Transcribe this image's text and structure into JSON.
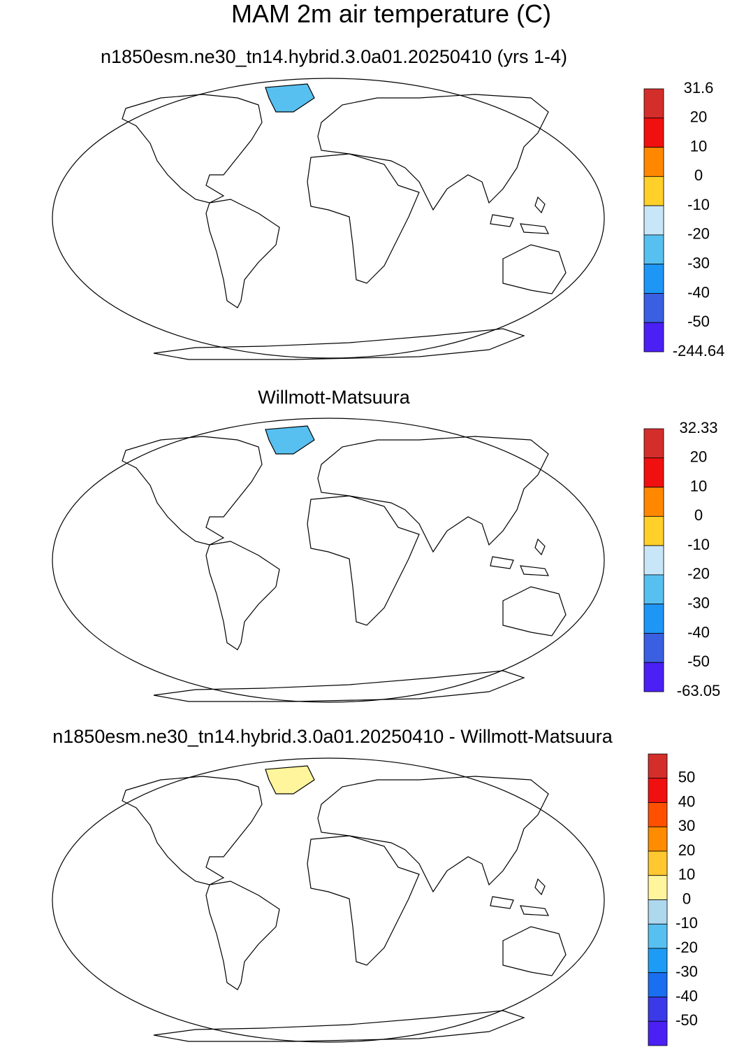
{
  "title": "MAM 2m air temperature (C)",
  "panels": [
    {
      "subtitle": "n1850esm.ne30_tn14.hybrid.3.0a01.20250410 (yrs 1-4)",
      "colorbar": {
        "colors": [
          "#d42e2b",
          "#f01010",
          "#ff8800",
          "#ffd02a",
          "#c8e6f7",
          "#58c0f0",
          "#1e96f5",
          "#3a5fe0",
          "#4a20f5"
        ],
        "labels": [
          31.6,
          20,
          10,
          0,
          -10,
          -20,
          -30,
          -40,
          -50,
          -244.64
        ]
      }
    },
    {
      "subtitle": "Willmott-Matsuura",
      "colorbar": {
        "colors": [
          "#d42e2b",
          "#f01010",
          "#ff8800",
          "#ffd02a",
          "#c8e6f7",
          "#58c0f0",
          "#1e96f5",
          "#3a5fe0",
          "#4a20f5"
        ],
        "labels": [
          32.33,
          20,
          10,
          0,
          -10,
          -20,
          -30,
          -40,
          -50,
          -63.05
        ]
      }
    },
    {
      "subtitle": "n1850esm.ne30_tn14.hybrid.3.0a01.20250410 - Willmott-Matsuura",
      "colorbar": {
        "colors": [
          "#d42e2b",
          "#f01010",
          "#ff5000",
          "#ff8c00",
          "#ffc830",
          "#fff59d",
          "#aed8ee",
          "#58c0f0",
          "#1e9cf5",
          "#1a6ef0",
          "#3a3ae8",
          "#4a20f5"
        ],
        "labels": [
          50,
          40,
          30,
          20,
          10,
          0,
          -10,
          -20,
          -30,
          -40,
          -50
        ]
      }
    }
  ]
}
